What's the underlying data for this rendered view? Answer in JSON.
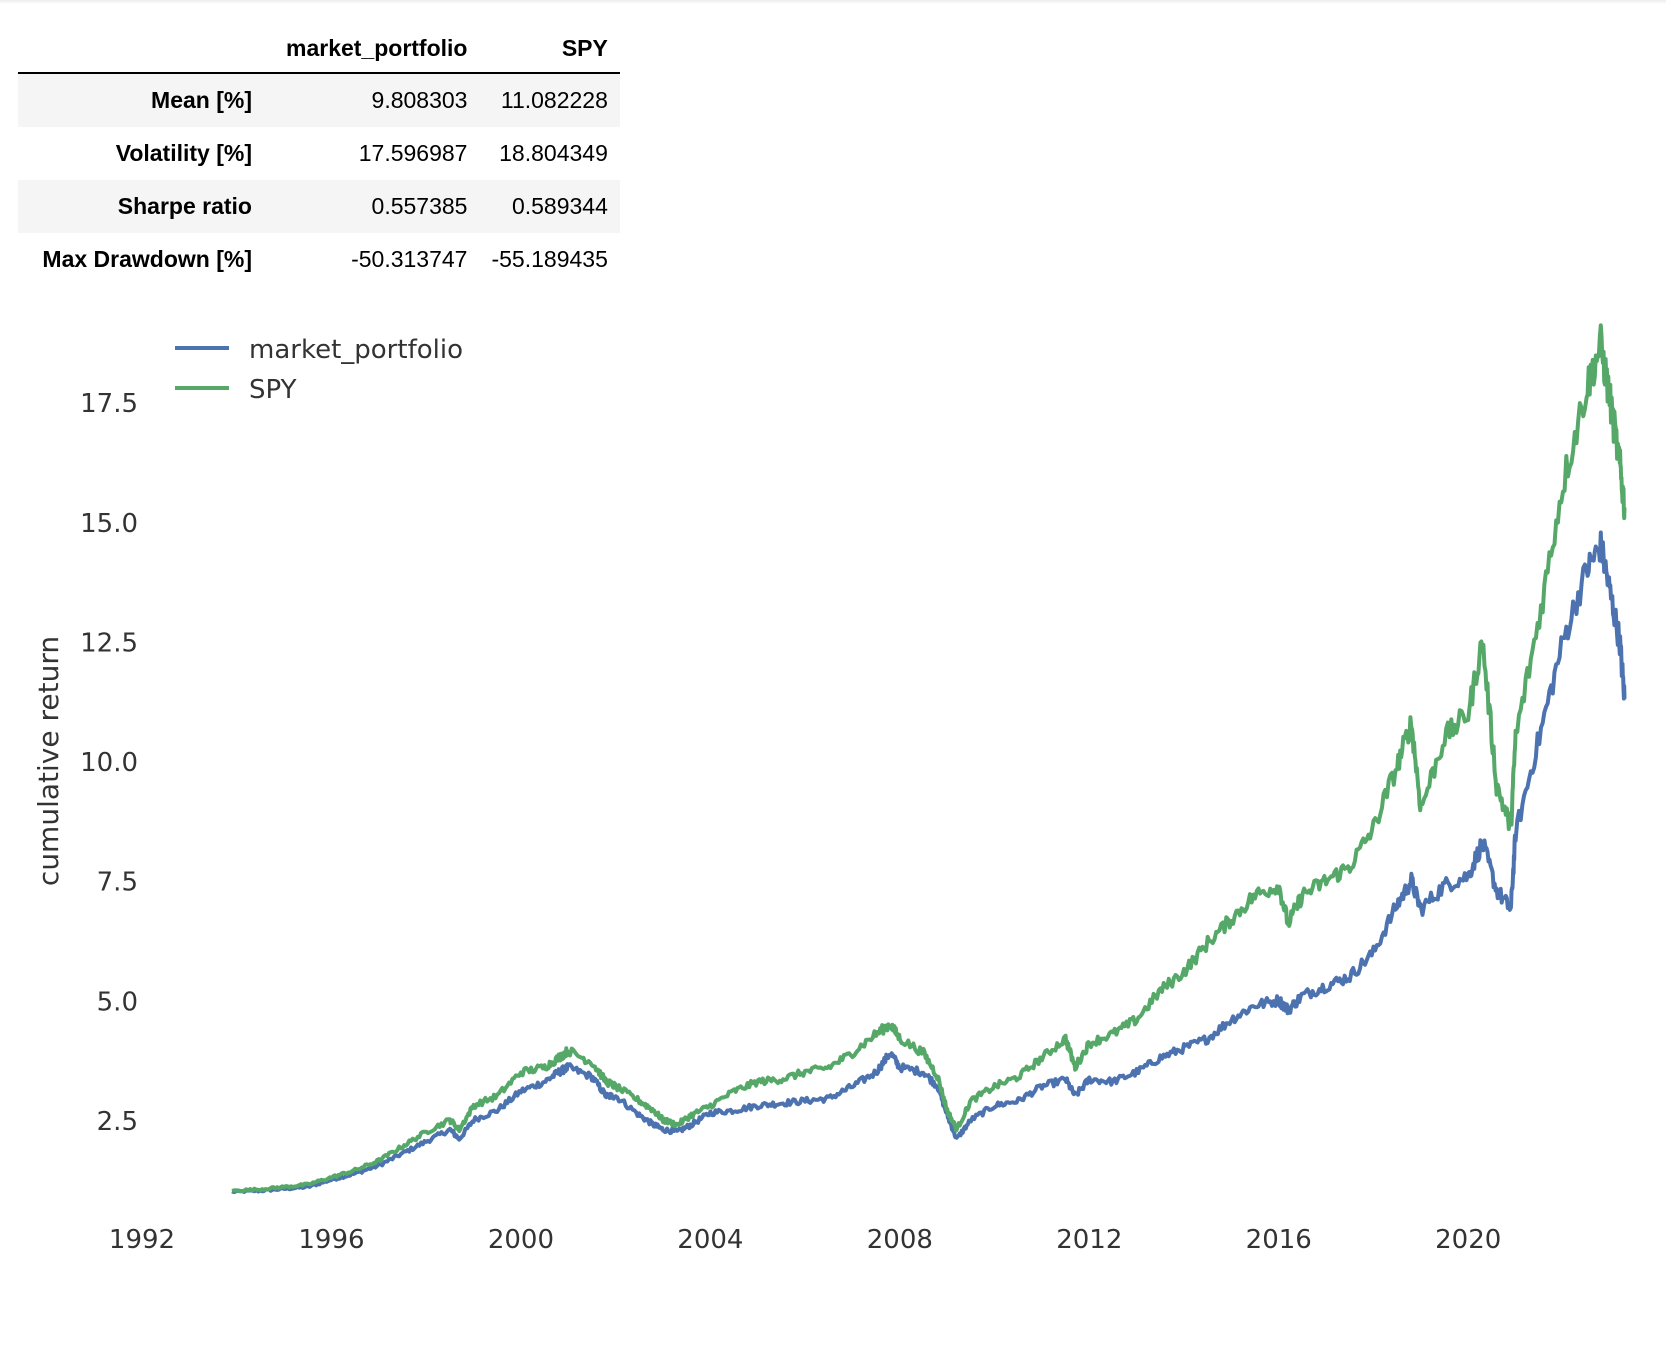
{
  "stats_table": {
    "columns": [
      "market_portfolio",
      "SPY"
    ],
    "rows": [
      {
        "label": "Mean [%]",
        "values": [
          "9.808303",
          "11.082228"
        ]
      },
      {
        "label": "Volatility [%]",
        "values": [
          "17.596987",
          "18.804349"
        ]
      },
      {
        "label": "Sharpe ratio",
        "values": [
          "0.557385",
          "0.589344"
        ]
      },
      {
        "label": "Max Drawdown [%]",
        "values": [
          "-50.313747",
          "-55.189435"
        ]
      }
    ]
  },
  "chart_data": {
    "type": "line",
    "title": "",
    "xlabel": "",
    "ylabel": "cumulative return",
    "xlim": [
      1992,
      2023.5
    ],
    "ylim": [
      0.2,
      18.8
    ],
    "x_ticks": [
      "1992",
      "1996",
      "2000",
      "2004",
      "2008",
      "2012",
      "2016",
      "2020"
    ],
    "y_ticks": [
      "2.5",
      "5.0",
      "7.5",
      "10.0",
      "12.5",
      "15.0",
      "17.5"
    ],
    "grid": false,
    "legend_position": "upper-left",
    "series": [
      {
        "name": "market_portfolio",
        "color": "#4c72b0",
        "points": [
          [
            1993.9,
            1.0
          ],
          [
            1994.5,
            1.02
          ],
          [
            1995.0,
            1.06
          ],
          [
            1995.5,
            1.1
          ],
          [
            1996.0,
            1.25
          ],
          [
            1996.5,
            1.38
          ],
          [
            1997.0,
            1.55
          ],
          [
            1997.5,
            1.8
          ],
          [
            1998.0,
            2.05
          ],
          [
            1998.5,
            2.3
          ],
          [
            1998.7,
            2.1
          ],
          [
            1999.0,
            2.5
          ],
          [
            1999.5,
            2.7
          ],
          [
            2000.0,
            3.1
          ],
          [
            2000.5,
            3.3
          ],
          [
            2000.8,
            3.5
          ],
          [
            2001.0,
            3.6
          ],
          [
            2001.5,
            3.4
          ],
          [
            2001.8,
            3.0
          ],
          [
            2002.0,
            3.0
          ],
          [
            2002.5,
            2.6
          ],
          [
            2002.8,
            2.4
          ],
          [
            2003.0,
            2.3
          ],
          [
            2003.3,
            2.25
          ],
          [
            2003.6,
            2.4
          ],
          [
            2004.0,
            2.65
          ],
          [
            2004.5,
            2.7
          ],
          [
            2005.0,
            2.8
          ],
          [
            2005.5,
            2.85
          ],
          [
            2006.0,
            2.9
          ],
          [
            2006.5,
            2.95
          ],
          [
            2007.0,
            3.2
          ],
          [
            2007.5,
            3.5
          ],
          [
            2007.8,
            3.9
          ],
          [
            2008.0,
            3.6
          ],
          [
            2008.5,
            3.5
          ],
          [
            2008.8,
            3.2
          ],
          [
            2009.0,
            2.6
          ],
          [
            2009.2,
            2.1
          ],
          [
            2009.5,
            2.5
          ],
          [
            2010.0,
            2.8
          ],
          [
            2010.5,
            2.9
          ],
          [
            2011.0,
            3.2
          ],
          [
            2011.5,
            3.35
          ],
          [
            2011.7,
            3.0
          ],
          [
            2012.0,
            3.35
          ],
          [
            2012.5,
            3.3
          ],
          [
            2013.0,
            3.5
          ],
          [
            2013.5,
            3.8
          ],
          [
            2014.0,
            4.0
          ],
          [
            2014.5,
            4.2
          ],
          [
            2015.0,
            4.6
          ],
          [
            2015.5,
            4.9
          ],
          [
            2016.0,
            5.0
          ],
          [
            2016.2,
            4.8
          ],
          [
            2016.5,
            5.1
          ],
          [
            2017.0,
            5.3
          ],
          [
            2017.5,
            5.5
          ],
          [
            2018.0,
            6.0
          ],
          [
            2018.5,
            7.0
          ],
          [
            2018.8,
            7.5
          ],
          [
            2019.0,
            6.9
          ],
          [
            2019.5,
            7.4
          ],
          [
            2020.0,
            7.6
          ],
          [
            2020.3,
            8.3
          ],
          [
            2020.6,
            7.3
          ],
          [
            2020.9,
            6.9
          ],
          [
            2021.0,
            8.5
          ],
          [
            2021.5,
            10.5
          ],
          [
            2022.0,
            12.5
          ],
          [
            2022.5,
            14.0
          ],
          [
            2022.8,
            14.5
          ],
          [
            2023.0,
            13.5
          ],
          [
            2023.2,
            12.5
          ],
          [
            2023.3,
            11.3
          ]
        ]
      },
      {
        "name": "SPY",
        "color": "#55a868",
        "points": [
          [
            1993.9,
            1.02
          ],
          [
            1994.5,
            1.05
          ],
          [
            1995.0,
            1.1
          ],
          [
            1995.5,
            1.15
          ],
          [
            1996.0,
            1.3
          ],
          [
            1996.5,
            1.45
          ],
          [
            1997.0,
            1.65
          ],
          [
            1997.5,
            1.95
          ],
          [
            1998.0,
            2.25
          ],
          [
            1998.5,
            2.5
          ],
          [
            1998.7,
            2.3
          ],
          [
            1999.0,
            2.8
          ],
          [
            1999.5,
            3.0
          ],
          [
            2000.0,
            3.5
          ],
          [
            2000.5,
            3.6
          ],
          [
            2000.8,
            3.8
          ],
          [
            2001.0,
            3.95
          ],
          [
            2001.5,
            3.7
          ],
          [
            2001.8,
            3.3
          ],
          [
            2002.0,
            3.2
          ],
          [
            2002.5,
            2.9
          ],
          [
            2002.8,
            2.7
          ],
          [
            2003.0,
            2.5
          ],
          [
            2003.3,
            2.4
          ],
          [
            2003.6,
            2.6
          ],
          [
            2004.0,
            2.8
          ],
          [
            2004.5,
            3.1
          ],
          [
            2005.0,
            3.3
          ],
          [
            2005.5,
            3.35
          ],
          [
            2006.0,
            3.5
          ],
          [
            2006.5,
            3.6
          ],
          [
            2007.0,
            3.9
          ],
          [
            2007.5,
            4.3
          ],
          [
            2007.8,
            4.5
          ],
          [
            2008.0,
            4.2
          ],
          [
            2008.5,
            3.9
          ],
          [
            2008.8,
            3.4
          ],
          [
            2009.0,
            2.7
          ],
          [
            2009.2,
            2.3
          ],
          [
            2009.5,
            2.9
          ],
          [
            2010.0,
            3.2
          ],
          [
            2010.5,
            3.4
          ],
          [
            2011.0,
            3.8
          ],
          [
            2011.5,
            4.2
          ],
          [
            2011.7,
            3.6
          ],
          [
            2012.0,
            4.1
          ],
          [
            2012.5,
            4.3
          ],
          [
            2013.0,
            4.6
          ],
          [
            2013.5,
            5.2
          ],
          [
            2014.0,
            5.6
          ],
          [
            2014.5,
            6.2
          ],
          [
            2015.0,
            6.7
          ],
          [
            2015.5,
            7.2
          ],
          [
            2016.0,
            7.4
          ],
          [
            2016.2,
            6.6
          ],
          [
            2016.5,
            7.2
          ],
          [
            2017.0,
            7.5
          ],
          [
            2017.5,
            7.8
          ],
          [
            2018.0,
            8.6
          ],
          [
            2018.5,
            9.9
          ],
          [
            2018.8,
            10.8
          ],
          [
            2019.0,
            9.0
          ],
          [
            2019.5,
            10.5
          ],
          [
            2020.0,
            11.0
          ],
          [
            2020.3,
            12.5
          ],
          [
            2020.6,
            9.5
          ],
          [
            2020.9,
            8.6
          ],
          [
            2021.0,
            10.5
          ],
          [
            2021.5,
            13.0
          ],
          [
            2022.0,
            15.8
          ],
          [
            2022.5,
            17.8
          ],
          [
            2022.8,
            18.7
          ],
          [
            2023.0,
            17.5
          ],
          [
            2023.2,
            16.2
          ],
          [
            2023.3,
            15.3
          ]
        ]
      }
    ]
  }
}
